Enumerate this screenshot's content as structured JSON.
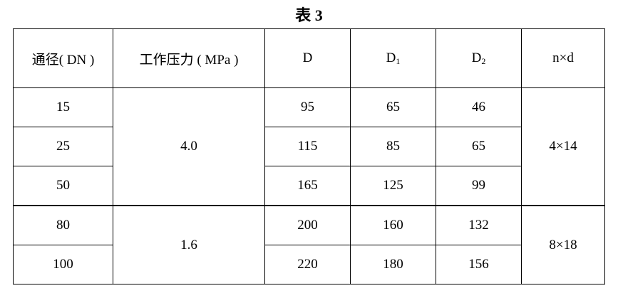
{
  "title": "表 3",
  "headers": {
    "dn": "通径( DN )",
    "pressure": "工作压力 ( MPa )",
    "d": "D",
    "d1_base": "D",
    "d1_sub": "1",
    "d2_base": "D",
    "d2_sub": "2",
    "nxd": "n×d"
  },
  "groups": [
    {
      "pressure": "4.0",
      "nxd": "4×14",
      "rows": [
        {
          "dn": "15",
          "d": "95",
          "d1": "65",
          "d2": "46"
        },
        {
          "dn": "25",
          "d": "115",
          "d1": "85",
          "d2": "65"
        },
        {
          "dn": "50",
          "d": "165",
          "d1": "125",
          "d2": "99"
        }
      ]
    },
    {
      "pressure": "1.6",
      "nxd": "8×18",
      "rows": [
        {
          "dn": "80",
          "d": "200",
          "d1": "160",
          "d2": "132"
        },
        {
          "dn": "100",
          "d": "220",
          "d1": "180",
          "d2": "156"
        }
      ]
    }
  ]
}
